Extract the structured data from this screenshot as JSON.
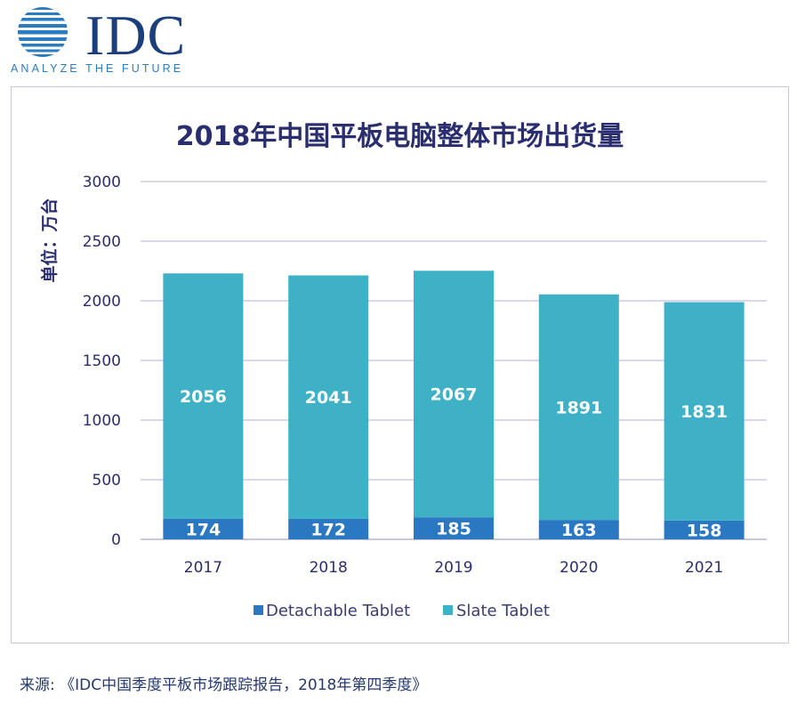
{
  "logo": {
    "name": "IDC",
    "tagline": "ANALYZE THE FUTURE",
    "brand_color": "#1a3f7a",
    "accent_color": "#2a7cc0"
  },
  "chart_data": {
    "type": "bar",
    "stacked": true,
    "title": "2018年中国平板电脑整体市场出货量",
    "xlabel": "",
    "ylabel": "单位：万台",
    "categories": [
      "2017",
      "2018",
      "2019",
      "2020",
      "2021"
    ],
    "series": [
      {
        "name": "Detachable Tablet",
        "values": [
          174,
          172,
          185,
          163,
          158
        ],
        "color": "#2b78c2"
      },
      {
        "name": "Slate Tablet",
        "values": [
          2056,
          2041,
          2067,
          1891,
          1831
        ],
        "color": "#3fb1c7"
      }
    ],
    "ylim": [
      0,
      3000
    ],
    "yticks": [
      0,
      500,
      1000,
      1500,
      2000,
      2500,
      3000
    ],
    "grid": true,
    "legend": "bottom",
    "data_labels": true
  },
  "footer": {
    "source": "来源: 《IDC中国季度平板市场跟踪报告，2018年第四季度》"
  }
}
